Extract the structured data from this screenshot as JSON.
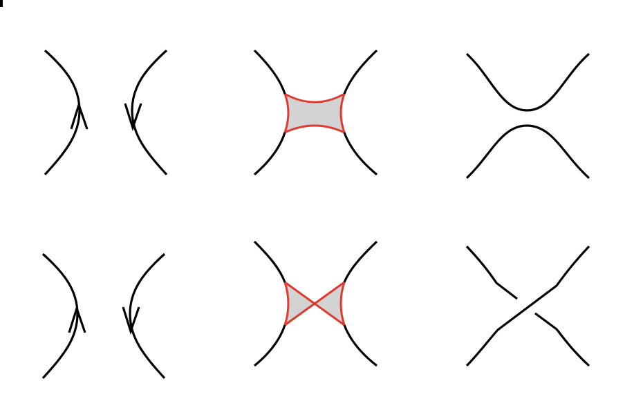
{
  "colors": {
    "line": "#000000",
    "region_outline": "#e03a2f",
    "region_fill": "#d3d3d3",
    "background": "#ffffff"
  },
  "panels": [
    {
      "name": "oriented-arcs-top",
      "type": "oriented-arcs",
      "left_arrow": "up",
      "right_arrow": "down"
    },
    {
      "name": "saddle-region-top",
      "type": "saddle-region"
    },
    {
      "name": "smoothing-horizontal-top",
      "type": "smoothing"
    },
    {
      "name": "oriented-arcs-bottom",
      "type": "oriented-arcs",
      "left_arrow": "up",
      "right_arrow": "down"
    },
    {
      "name": "twisted-region-bottom",
      "type": "twisted-region"
    },
    {
      "name": "crossing-bottom",
      "type": "crossing"
    }
  ]
}
